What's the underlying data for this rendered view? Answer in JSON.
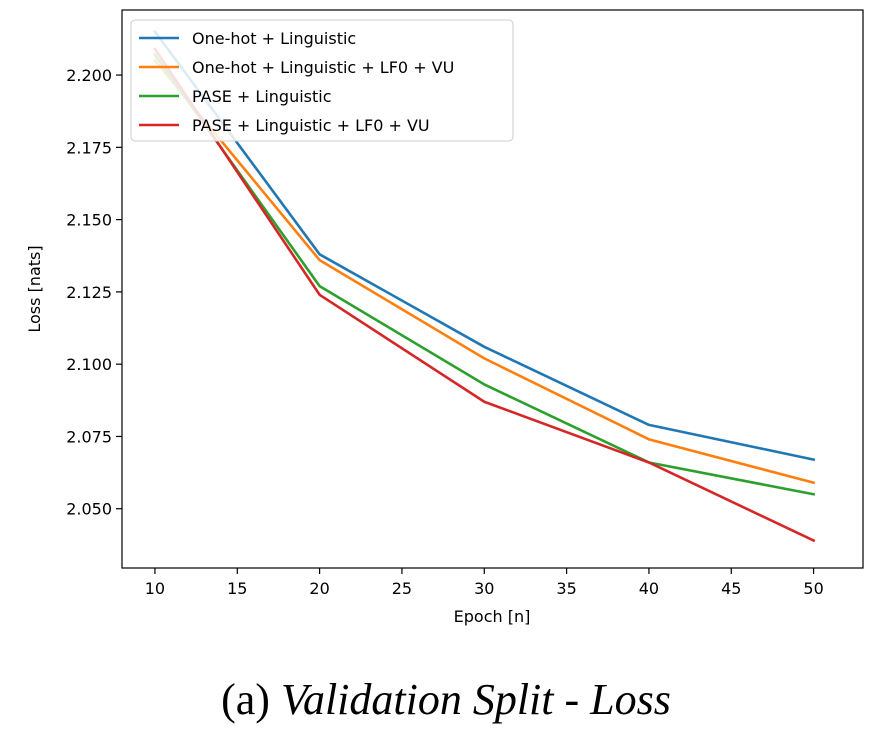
{
  "chart_data": {
    "type": "line",
    "xlabel": "Epoch [n]",
    "ylabel": "Loss [nats]",
    "xlim": [
      8,
      53
    ],
    "ylim": [
      2.0295,
      2.2225
    ],
    "xticks": [
      10,
      15,
      20,
      25,
      30,
      35,
      40,
      45,
      50
    ],
    "xtick_labels": [
      "10",
      "15",
      "20",
      "25",
      "30",
      "35",
      "40",
      "45",
      "50"
    ],
    "yticks": [
      2.05,
      2.075,
      2.1,
      2.125,
      2.15,
      2.175,
      2.2
    ],
    "ytick_labels": [
      "2.050",
      "2.075",
      "2.100",
      "2.125",
      "2.150",
      "2.175",
      "2.200"
    ],
    "grid": false,
    "legend_position": "top-left",
    "x": [
      10,
      20,
      30,
      40,
      50
    ],
    "series": [
      {
        "name": "One-hot + Linguistic",
        "color": "#1f77b4",
        "values": [
          2.215,
          2.138,
          2.106,
          2.079,
          2.067
        ]
      },
      {
        "name": "One-hot + Linguistic + LF0 + VU",
        "color": "#ff7f0e",
        "values": [
          2.205,
          2.136,
          2.102,
          2.074,
          2.059
        ]
      },
      {
        "name": "PASE + Linguistic",
        "color": "#2ca02c",
        "values": [
          2.207,
          2.127,
          2.093,
          2.066,
          2.055
        ]
      },
      {
        "name": "PASE + Linguistic + LF0 + VU",
        "color": "#d62728",
        "values": [
          2.209,
          2.124,
          2.087,
          2.066,
          2.039
        ]
      }
    ]
  },
  "caption": {
    "prefix": "(a) ",
    "title": "Validation Split - Loss"
  }
}
